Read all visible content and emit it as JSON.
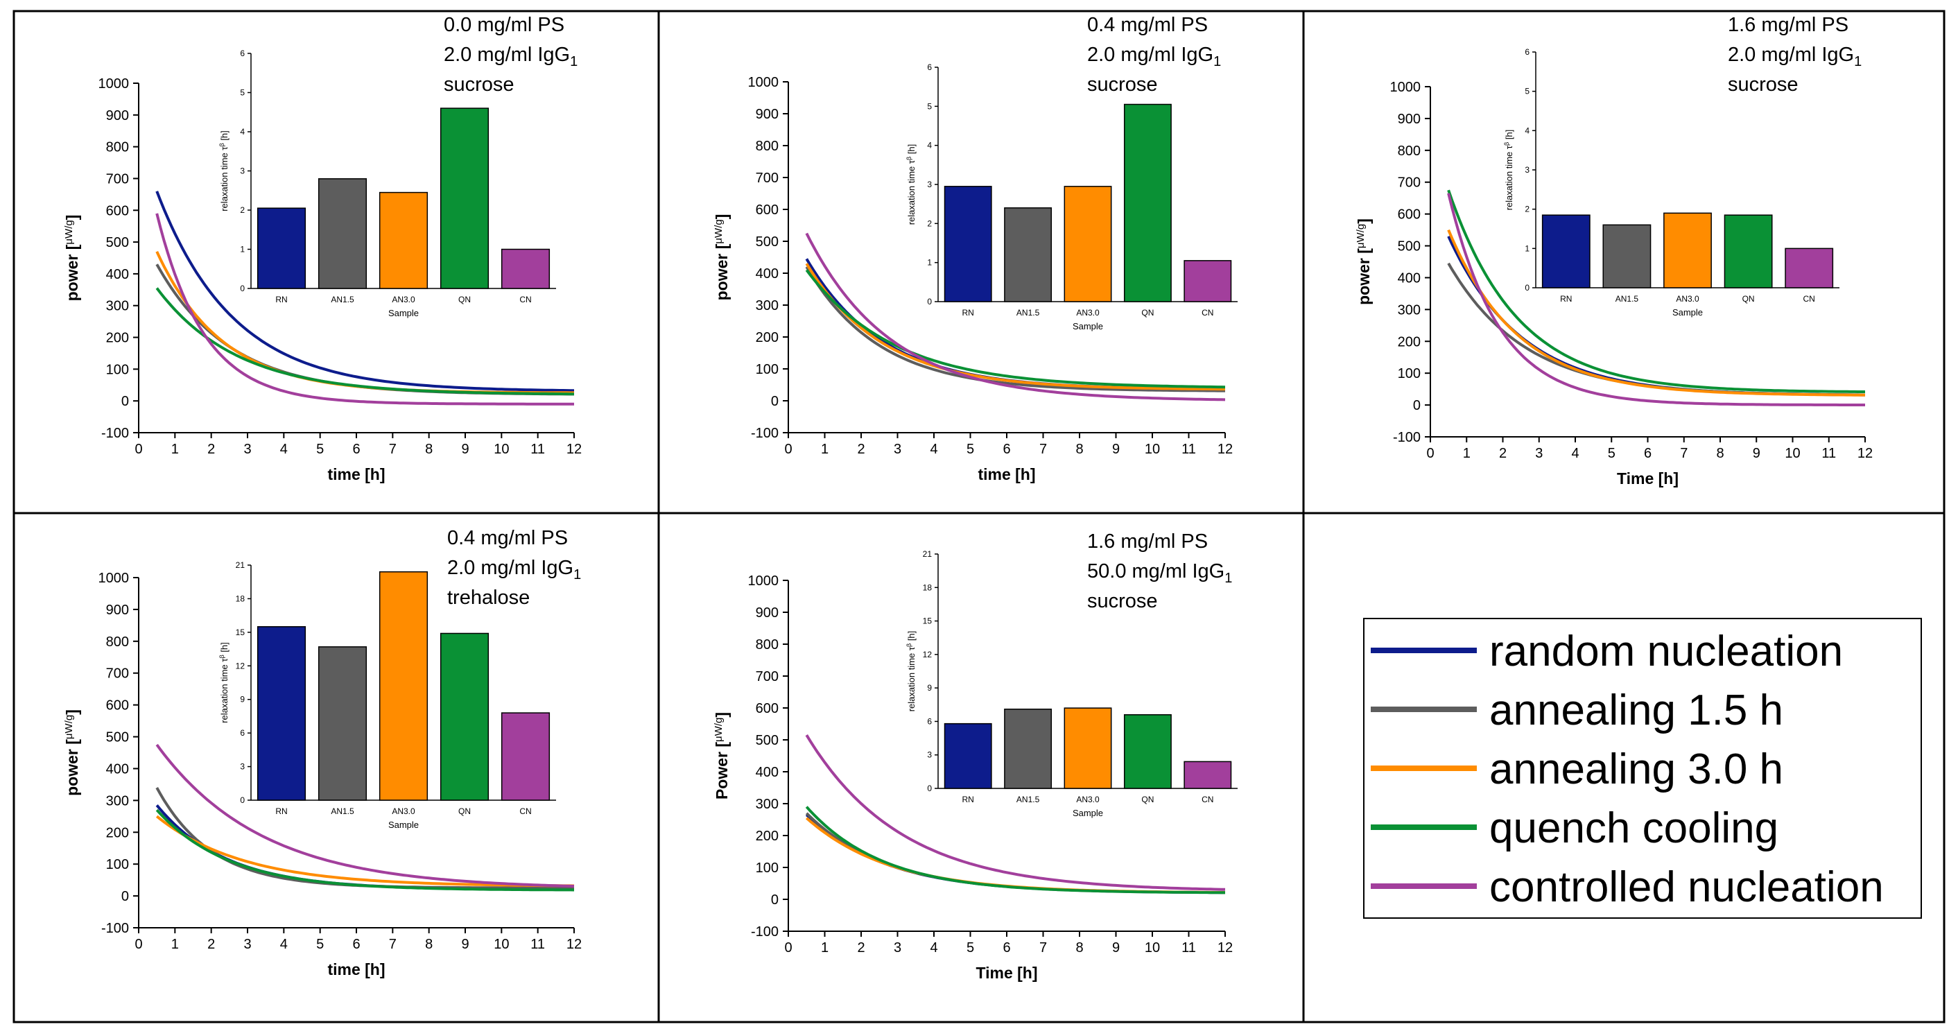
{
  "series_names": [
    "random nucleation",
    "annealing 1.5 h",
    "annealing 3.0 h",
    "quench cooling",
    "controlled nucleation"
  ],
  "series_colors": [
    "#0d1c8c",
    "#5d5d5d",
    "#ff8c00",
    "#0a9135",
    "#a23f9c"
  ],
  "chart_data": [
    {
      "type": "line",
      "id": "p1",
      "x_label": "time [h]",
      "y_label": "power [",
      "y_unit": "μW/g",
      "xlim": [
        0,
        12
      ],
      "ylim": [
        -100,
        1000
      ],
      "x_ticks": [
        "0",
        "1",
        "2",
        "3",
        "4",
        "5",
        "6",
        "7",
        "8",
        "9",
        "10",
        "11",
        "12"
      ],
      "y_ticks": [
        "-100",
        "0",
        "100",
        "200",
        "300",
        "400",
        "500",
        "600",
        "700",
        "800",
        "900",
        "1000"
      ],
      "annotation": {
        "line1": "0.0 mg/ml PS",
        "line2": "2.0 mg/ml IgG",
        "sub": "1",
        "line3": "sucrose"
      },
      "series": [
        {
          "name": "random nucleation",
          "start": 660,
          "end": 30,
          "tau": 2.1
        },
        {
          "name": "annealing 1.5 h",
          "start": 430,
          "end": 20,
          "tau": 2.0
        },
        {
          "name": "annealing 3.0 h",
          "start": 470,
          "end": 25,
          "tau": 1.8
        },
        {
          "name": "quench cooling",
          "start": 355,
          "end": 20,
          "tau": 2.2
        },
        {
          "name": "controlled nucleation",
          "start": 590,
          "end": -10,
          "tau": 1.3
        }
      ],
      "inset": {
        "type": "bar",
        "xlabel": "Sample",
        "ylabel": "relaxation time τ",
        "ylim": [
          0,
          6
        ],
        "yticks": [
          "0",
          "1",
          "2",
          "3",
          "4",
          "5",
          "6"
        ],
        "categories": [
          "RN",
          "AN1.5",
          "AN3.0",
          "QN",
          "CN"
        ],
        "values": [
          2.05,
          2.8,
          2.45,
          4.6,
          1.0
        ]
      }
    },
    {
      "type": "line",
      "id": "p2",
      "x_label": "time [h]",
      "y_label": "power [",
      "y_unit": "μW/g",
      "xlim": [
        0,
        12
      ],
      "ylim": [
        -100,
        1000
      ],
      "x_ticks": [
        "0",
        "1",
        "2",
        "3",
        "4",
        "5",
        "6",
        "7",
        "8",
        "9",
        "10",
        "11",
        "12"
      ],
      "y_ticks": [
        "-100",
        "0",
        "100",
        "200",
        "300",
        "400",
        "500",
        "600",
        "700",
        "800",
        "900",
        "1000"
      ],
      "annotation": {
        "line1": "0.4 mg/ml PS",
        "line2": "2.0 mg/ml IgG",
        "sub": "1",
        "line3": "sucrose"
      },
      "series": [
        {
          "name": "random nucleation",
          "start": 445,
          "end": 35,
          "tau": 2.1
        },
        {
          "name": "annealing 1.5 h",
          "start": 420,
          "end": 30,
          "tau": 2.0
        },
        {
          "name": "annealing 3.0 h",
          "start": 430,
          "end": 35,
          "tau": 2.1
        },
        {
          "name": "quench cooling",
          "start": 410,
          "end": 40,
          "tau": 2.4
        },
        {
          "name": "controlled nucleation",
          "start": 525,
          "end": 0,
          "tau": 2.3
        }
      ],
      "inset": {
        "type": "bar",
        "xlabel": "Sample",
        "ylabel": "relaxation time τ",
        "ylim": [
          0,
          6
        ],
        "yticks": [
          "0",
          "1",
          "2",
          "3",
          "4",
          "5",
          "6"
        ],
        "categories": [
          "RN",
          "AN1.5",
          "AN3.0",
          "QN",
          "CN"
        ],
        "values": [
          2.95,
          2.4,
          2.95,
          5.05,
          1.05
        ]
      }
    },
    {
      "type": "line",
      "id": "p3",
      "x_label": "Time [h]",
      "y_label": "power [",
      "y_unit": "μW/g",
      "xlim": [
        0,
        12
      ],
      "ylim": [
        -100,
        1000
      ],
      "x_ticks": [
        "0",
        "1",
        "2",
        "3",
        "4",
        "5",
        "6",
        "7",
        "8",
        "9",
        "10",
        "11",
        "12"
      ],
      "y_ticks": [
        "-100",
        "0",
        "100",
        "200",
        "300",
        "400",
        "500",
        "600",
        "700",
        "800",
        "900",
        "1000"
      ],
      "annotation": {
        "line1": "1.6 mg/ml PS",
        "line2": "2.0 mg/ml IgG",
        "sub": "1",
        "line3": "sucrose"
      },
      "series": [
        {
          "name": "random nucleation",
          "start": 530,
          "end": 30,
          "tau": 2.0
        },
        {
          "name": "annealing 1.5 h",
          "start": 445,
          "end": 30,
          "tau": 2.1
        },
        {
          "name": "annealing 3.0 h",
          "start": 550,
          "end": 30,
          "tau": 1.9
        },
        {
          "name": "quench cooling",
          "start": 675,
          "end": 40,
          "tau": 1.9
        },
        {
          "name": "controlled nucleation",
          "start": 665,
          "end": 0,
          "tau": 1.4
        }
      ],
      "inset": {
        "type": "bar",
        "xlabel": "Sample",
        "ylabel": "relaxation time τ",
        "ylim": [
          0,
          6
        ],
        "yticks": [
          "0",
          "1",
          "2",
          "3",
          "4",
          "5",
          "6"
        ],
        "categories": [
          "RN",
          "AN1.5",
          "AN3.0",
          "QN",
          "CN"
        ],
        "values": [
          1.85,
          1.6,
          1.9,
          1.85,
          1.0
        ]
      }
    },
    {
      "type": "line",
      "id": "p4",
      "x_label": "time [h]",
      "y_label": "power [",
      "y_unit": "μW/g",
      "xlim": [
        0,
        12
      ],
      "ylim": [
        -100,
        1000
      ],
      "x_ticks": [
        "0",
        "1",
        "2",
        "3",
        "4",
        "5",
        "6",
        "7",
        "8",
        "9",
        "10",
        "11",
        "12"
      ],
      "y_ticks": [
        "-100",
        "0",
        "100",
        "200",
        "300",
        "400",
        "500",
        "600",
        "700",
        "800",
        "900",
        "1000"
      ],
      "annotation": {
        "line1": "0.4 mg/ml PS",
        "line2": "2.0 mg/ml IgG",
        "sub": "1",
        "line3": "trehalose"
      },
      "series": [
        {
          "name": "random nucleation",
          "start": 285,
          "end": 20,
          "tau": 1.9
        },
        {
          "name": "annealing 1.5 h",
          "start": 340,
          "end": 25,
          "tau": 1.5
        },
        {
          "name": "annealing 3.0 h",
          "start": 250,
          "end": 30,
          "tau": 2.4
        },
        {
          "name": "quench cooling",
          "start": 270,
          "end": 18,
          "tau": 2.0
        },
        {
          "name": "controlled nucleation",
          "start": 475,
          "end": 22,
          "tau": 2.9
        }
      ],
      "inset": {
        "type": "bar",
        "xlabel": "Sample",
        "ylabel": "relaxation time τ",
        "ylim": [
          0,
          21
        ],
        "yticks": [
          "0",
          "3",
          "6",
          "9",
          "12",
          "15",
          "18",
          "21"
        ],
        "categories": [
          "RN",
          "AN1.5",
          "AN3.0",
          "QN",
          "CN"
        ],
        "values": [
          15.5,
          13.7,
          20.4,
          14.9,
          7.8
        ]
      }
    },
    {
      "type": "line",
      "id": "p5",
      "x_label": "Time [h]",
      "y_label": "Power [",
      "y_unit": "μW/g",
      "xlim": [
        0,
        12
      ],
      "ylim": [
        -100,
        1000
      ],
      "x_ticks": [
        "0",
        "1",
        "2",
        "3",
        "4",
        "5",
        "6",
        "7",
        "8",
        "9",
        "10",
        "11",
        "12"
      ],
      "y_ticks": [
        "-100",
        "0",
        "100",
        "200",
        "300",
        "400",
        "500",
        "600",
        "700",
        "800",
        "900",
        "1000"
      ],
      "annotation": {
        "line1": "1.6 mg/ml PS",
        "line2": "50.0 mg/ml IgG",
        "sub": "1",
        "line3": "sucrose"
      },
      "series": [
        {
          "name": "random nucleation",
          "start": 265,
          "end": 20,
          "tau": 2.2
        },
        {
          "name": "annealing 1.5 h",
          "start": 270,
          "end": 20,
          "tau": 2.2
        },
        {
          "name": "annealing 3.0 h",
          "start": 255,
          "end": 20,
          "tau": 2.3
        },
        {
          "name": "quench cooling",
          "start": 290,
          "end": 20,
          "tau": 2.1
        },
        {
          "name": "controlled nucleation",
          "start": 515,
          "end": 25,
          "tau": 2.6
        }
      ],
      "inset": {
        "type": "bar",
        "xlabel": "Sample",
        "ylabel": "relaxation time τ",
        "ylim": [
          0,
          21
        ],
        "yticks": [
          "0",
          "3",
          "6",
          "9",
          "12",
          "15",
          "18",
          "21"
        ],
        "categories": [
          "RN",
          "AN1.5",
          "AN3.0",
          "QN",
          "CN"
        ],
        "values": [
          5.8,
          7.1,
          7.2,
          6.6,
          2.4
        ]
      }
    }
  ]
}
